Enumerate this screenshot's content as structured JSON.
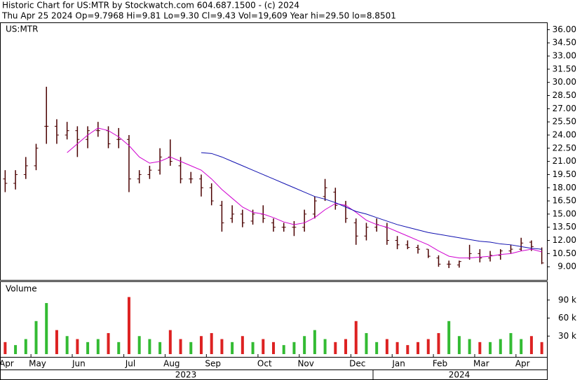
{
  "chart_data": [
    {
      "type": "ohlc",
      "title": "Historic Chart for US:MTR by Stockwatch.com 604.687.1500 - (c) 2024",
      "subtitle": "Thu Apr 25 2024  Op=9.7968  Hi=9.81  Lo=9.30  Cl=9.43  Vol=19,609  Year hi=29.50  lo=8.8501",
      "label": "US:MTR",
      "color": "#4a0000",
      "open": [
        19,
        18.5,
        19.5,
        20.5,
        25,
        25,
        24,
        24.5,
        23.5,
        24.5,
        24.5,
        23.5,
        23.5,
        19,
        19.5,
        20,
        21.5,
        20.5,
        19,
        19,
        18,
        16,
        14.5,
        15,
        14.2,
        15,
        14,
        13.5,
        13.5,
        13.5,
        15,
        17,
        17.5,
        16,
        14,
        12.5,
        13.5,
        13.5,
        12,
        11.5,
        11.2,
        11,
        10,
        9.3,
        9.2,
        10,
        10.5,
        10,
        10.3,
        10.8,
        11,
        11.8,
        11
      ],
      "high": [
        20,
        20,
        21.5,
        23,
        29.5,
        25.8,
        25.5,
        25,
        25,
        25.5,
        25,
        24.8,
        24,
        20,
        20.5,
        22.5,
        23.5,
        21.5,
        19.8,
        19.5,
        18.5,
        16.5,
        16,
        15.5,
        15.5,
        16,
        14.5,
        14,
        14.2,
        15.5,
        17,
        19,
        18,
        16.5,
        14.5,
        14,
        14.5,
        14,
        12.5,
        12,
        11.5,
        11,
        10.3,
        9.7,
        9.7,
        11.5,
        11,
        10.8,
        11,
        11.5,
        12.3,
        12,
        11.2
      ],
      "low": [
        17.5,
        17.8,
        19,
        20,
        23,
        23,
        23.5,
        21.5,
        22.5,
        23.8,
        22.5,
        22.5,
        17.5,
        18.5,
        19,
        19.5,
        20.5,
        18.5,
        18.5,
        17,
        16,
        13,
        14,
        13.5,
        13.8,
        14,
        13,
        13,
        12.5,
        13,
        14.5,
        16.5,
        15.5,
        14,
        11.5,
        12,
        13,
        11.5,
        11,
        11,
        10.5,
        10,
        9,
        8.85,
        8.9,
        9.8,
        9.5,
        9.6,
        9.8,
        10.5,
        10.8,
        10.8,
        9.3
      ],
      "close": [
        18.5,
        19.5,
        20.5,
        22.5,
        25,
        24,
        24.5,
        23.5,
        24.5,
        24.5,
        23,
        23.5,
        19,
        19.5,
        20,
        21.5,
        21,
        19,
        19,
        18,
        16.5,
        14,
        15,
        14,
        15,
        14.5,
        13.5,
        13.5,
        13.5,
        15,
        16.5,
        18,
        16,
        14.5,
        12.5,
        13.5,
        13.8,
        12,
        11.5,
        11.2,
        11,
        10.2,
        9.3,
        9.3,
        9.6,
        10.5,
        10,
        10.3,
        10.8,
        11,
        11.7,
        11.3,
        9.43
      ],
      "series": [
        {
          "color": "#d000d0",
          "values": [
            null,
            null,
            null,
            null,
            null,
            null,
            22,
            23,
            24,
            24.8,
            24.5,
            23.8,
            22.8,
            21.5,
            20.8,
            21,
            21.5,
            21,
            20.5,
            20,
            19,
            17.8,
            16.8,
            15.8,
            15.2,
            15,
            14.6,
            14.1,
            13.8,
            14,
            14.6,
            15.5,
            16.2,
            16,
            15.2,
            14.3,
            13.8,
            13.5,
            13,
            12.5,
            12,
            11.5,
            10.8,
            10.2,
            10,
            10,
            10.1,
            10.2,
            10.4,
            10.5,
            10.8,
            11,
            10.7
          ]
        },
        {
          "color": "#1010b0",
          "values": [
            null,
            null,
            null,
            null,
            null,
            null,
            null,
            null,
            null,
            null,
            null,
            null,
            null,
            null,
            null,
            null,
            null,
            null,
            null,
            22,
            21.9,
            21.5,
            21,
            20.5,
            20,
            19.5,
            19,
            18.5,
            18,
            17.5,
            17,
            16.7,
            16.3,
            15.8,
            15.3,
            15,
            14.6,
            14.2,
            13.8,
            13.5,
            13.2,
            12.9,
            12.7,
            12.5,
            12.3,
            12.1,
            11.9,
            11.8,
            11.6,
            11.5,
            11.3,
            11.1,
            11
          ]
        }
      ],
      "ylim": [
        7.5,
        36.75
      ],
      "yticks": [
        {
          "value": 9,
          "label": "9.00"
        },
        {
          "value": 10.5,
          "label": "10.50"
        },
        {
          "value": 12,
          "label": "12.00"
        },
        {
          "value": 13.5,
          "label": "13.50"
        },
        {
          "value": 15,
          "label": "15.00"
        },
        {
          "value": 16.5,
          "label": "16.50"
        },
        {
          "value": 18,
          "label": "18.00"
        },
        {
          "value": 19.5,
          "label": "19.50"
        },
        {
          "value": 21,
          "label": "21.00"
        },
        {
          "value": 22.5,
          "label": "22.50"
        },
        {
          "value": 24,
          "label": "24.00"
        },
        {
          "value": 25.5,
          "label": "25.50"
        },
        {
          "value": 27,
          "label": "27.00"
        },
        {
          "value": 28.5,
          "label": "28.50"
        },
        {
          "value": 30,
          "label": "30.00"
        },
        {
          "value": 31.5,
          "label": "31.50"
        },
        {
          "value": 33,
          "label": "33.00"
        },
        {
          "value": 34.5,
          "label": "34.50"
        },
        {
          "value": 36,
          "label": "36.00"
        }
      ]
    },
    {
      "type": "bar",
      "label": "Volume",
      "up_color": "#33bb33",
      "down_color": "#dd2222",
      "categories": [
        "Apr",
        null,
        null,
        "May",
        null,
        null,
        null,
        "Jun",
        null,
        null,
        null,
        null,
        "Jul",
        null,
        null,
        null,
        "Aug",
        null,
        null,
        null,
        "Sep",
        null,
        null,
        null,
        null,
        "Oct",
        null,
        null,
        null,
        "Nov",
        null,
        null,
        null,
        null,
        "Dec",
        null,
        null,
        null,
        "Jan",
        null,
        null,
        null,
        "Feb",
        null,
        null,
        null,
        "Mar",
        null,
        null,
        null,
        "Apr",
        null,
        null
      ],
      "years": [
        "2023",
        "2024"
      ],
      "values": [
        20000,
        15000,
        25000,
        55000,
        85000,
        40000,
        30000,
        25000,
        20000,
        25000,
        35000,
        20000,
        95000,
        30000,
        25000,
        20000,
        40000,
        25000,
        20000,
        30000,
        35000,
        25000,
        20000,
        30000,
        20000,
        25000,
        20000,
        15000,
        20000,
        30000,
        40000,
        25000,
        20000,
        25000,
        55000,
        35000,
        20000,
        25000,
        20000,
        15000,
        20000,
        25000,
        35000,
        55000,
        30000,
        25000,
        20000,
        20000,
        25000,
        35000,
        25000,
        30000,
        20000
      ],
      "ylim": [
        0,
        120000
      ],
      "yticks": [
        {
          "value": 30000,
          "label": "30 k"
        },
        {
          "value": 60000,
          "label": "60 k"
        },
        {
          "value": 90000,
          "label": "90 k"
        }
      ]
    }
  ]
}
